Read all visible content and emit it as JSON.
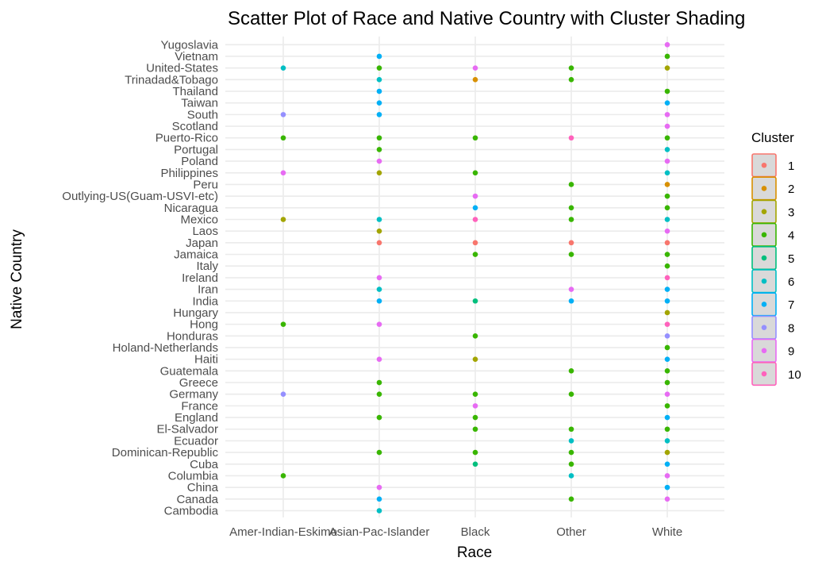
{
  "chart_data": {
    "type": "scatter",
    "title": "Scatter Plot of Race and Native Country with Cluster Shading",
    "xlabel": "Race",
    "ylabel": "Native Country",
    "grid": true,
    "legend_position": "right",
    "x_categories": [
      "Amer-Indian-Eskimo",
      "Asian-Pac-Islander",
      "Black",
      "Other",
      "White"
    ],
    "y_categories": [
      "Cambodia",
      "Canada",
      "China",
      "Columbia",
      "Cuba",
      "Dominican-Republic",
      "Ecuador",
      "El-Salvador",
      "England",
      "France",
      "Germany",
      "Greece",
      "Guatemala",
      "Haiti",
      "Holand-Netherlands",
      "Honduras",
      "Hong",
      "Hungary",
      "India",
      "Iran",
      "Ireland",
      "Italy",
      "Jamaica",
      "Japan",
      "Laos",
      "Mexico",
      "Nicaragua",
      "Outlying-US(Guam-USVI-etc)",
      "Peru",
      "Philippines",
      "Poland",
      "Portugal",
      "Puerto-Rico",
      "Scotland",
      "South",
      "Taiwan",
      "Thailand",
      "Trinadad&Tobago",
      "United-States",
      "Vietnam",
      "Yugoslavia"
    ],
    "legend": {
      "title": "Cluster",
      "entries": [
        {
          "label": "1",
          "color": "#F8766D"
        },
        {
          "label": "2",
          "color": "#D89000"
        },
        {
          "label": "3",
          "color": "#A3A500"
        },
        {
          "label": "4",
          "color": "#39B600"
        },
        {
          "label": "5",
          "color": "#00BF7D"
        },
        {
          "label": "6",
          "color": "#00BFC4"
        },
        {
          "label": "7",
          "color": "#00B0F6"
        },
        {
          "label": "8",
          "color": "#9590FF"
        },
        {
          "label": "9",
          "color": "#E76BF3"
        },
        {
          "label": "10",
          "color": "#FF62BC"
        }
      ]
    },
    "points": [
      {
        "race": "Amer-Indian-Eskimo",
        "country": "United-States",
        "cluster": "6"
      },
      {
        "race": "Amer-Indian-Eskimo",
        "country": "South",
        "cluster": "8"
      },
      {
        "race": "Amer-Indian-Eskimo",
        "country": "Puerto-Rico",
        "cluster": "4"
      },
      {
        "race": "Amer-Indian-Eskimo",
        "country": "Philippines",
        "cluster": "9"
      },
      {
        "race": "Amer-Indian-Eskimo",
        "country": "Mexico",
        "cluster": "3"
      },
      {
        "race": "Amer-Indian-Eskimo",
        "country": "Hong",
        "cluster": "4"
      },
      {
        "race": "Amer-Indian-Eskimo",
        "country": "Germany",
        "cluster": "8"
      },
      {
        "race": "Amer-Indian-Eskimo",
        "country": "Columbia",
        "cluster": "4"
      },
      {
        "race": "Asian-Pac-Islander",
        "country": "Vietnam",
        "cluster": "7"
      },
      {
        "race": "Asian-Pac-Islander",
        "country": "United-States",
        "cluster": "4"
      },
      {
        "race": "Asian-Pac-Islander",
        "country": "Trinadad&Tobago",
        "cluster": "6"
      },
      {
        "race": "Asian-Pac-Islander",
        "country": "Thailand",
        "cluster": "7"
      },
      {
        "race": "Asian-Pac-Islander",
        "country": "Taiwan",
        "cluster": "7"
      },
      {
        "race": "Asian-Pac-Islander",
        "country": "South",
        "cluster": "7"
      },
      {
        "race": "Asian-Pac-Islander",
        "country": "Puerto-Rico",
        "cluster": "4"
      },
      {
        "race": "Asian-Pac-Islander",
        "country": "Portugal",
        "cluster": "4"
      },
      {
        "race": "Asian-Pac-Islander",
        "country": "Poland",
        "cluster": "9"
      },
      {
        "race": "Asian-Pac-Islander",
        "country": "Philippines",
        "cluster": "3"
      },
      {
        "race": "Asian-Pac-Islander",
        "country": "Mexico",
        "cluster": "6"
      },
      {
        "race": "Asian-Pac-Islander",
        "country": "Laos",
        "cluster": "3"
      },
      {
        "race": "Asian-Pac-Islander",
        "country": "Japan",
        "cluster": "1"
      },
      {
        "race": "Asian-Pac-Islander",
        "country": "Ireland",
        "cluster": "9"
      },
      {
        "race": "Asian-Pac-Islander",
        "country": "Iran",
        "cluster": "6"
      },
      {
        "race": "Asian-Pac-Islander",
        "country": "India",
        "cluster": "7"
      },
      {
        "race": "Asian-Pac-Islander",
        "country": "Hong",
        "cluster": "9"
      },
      {
        "race": "Asian-Pac-Islander",
        "country": "Haiti",
        "cluster": "9"
      },
      {
        "race": "Asian-Pac-Islander",
        "country": "Greece",
        "cluster": "4"
      },
      {
        "race": "Asian-Pac-Islander",
        "country": "Germany",
        "cluster": "4"
      },
      {
        "race": "Asian-Pac-Islander",
        "country": "England",
        "cluster": "4"
      },
      {
        "race": "Asian-Pac-Islander",
        "country": "Dominican-Republic",
        "cluster": "4"
      },
      {
        "race": "Asian-Pac-Islander",
        "country": "China",
        "cluster": "9"
      },
      {
        "race": "Asian-Pac-Islander",
        "country": "Canada",
        "cluster": "7"
      },
      {
        "race": "Asian-Pac-Islander",
        "country": "Cambodia",
        "cluster": "6"
      },
      {
        "race": "Black",
        "country": "United-States",
        "cluster": "9"
      },
      {
        "race": "Black",
        "country": "Trinadad&Tobago",
        "cluster": "2"
      },
      {
        "race": "Black",
        "country": "Puerto-Rico",
        "cluster": "4"
      },
      {
        "race": "Black",
        "country": "Philippines",
        "cluster": "4"
      },
      {
        "race": "Black",
        "country": "Outlying-US(Guam-USVI-etc)",
        "cluster": "9"
      },
      {
        "race": "Black",
        "country": "Nicaragua",
        "cluster": "7"
      },
      {
        "race": "Black",
        "country": "Mexico",
        "cluster": "10"
      },
      {
        "race": "Black",
        "country": "Japan",
        "cluster": "1"
      },
      {
        "race": "Black",
        "country": "Jamaica",
        "cluster": "4"
      },
      {
        "race": "Black",
        "country": "India",
        "cluster": "5"
      },
      {
        "race": "Black",
        "country": "Honduras",
        "cluster": "4"
      },
      {
        "race": "Black",
        "country": "Haiti",
        "cluster": "3"
      },
      {
        "race": "Black",
        "country": "Germany",
        "cluster": "4"
      },
      {
        "race": "Black",
        "country": "France",
        "cluster": "9"
      },
      {
        "race": "Black",
        "country": "England",
        "cluster": "4"
      },
      {
        "race": "Black",
        "country": "El-Salvador",
        "cluster": "4"
      },
      {
        "race": "Black",
        "country": "Dominican-Republic",
        "cluster": "4"
      },
      {
        "race": "Black",
        "country": "Cuba",
        "cluster": "5"
      },
      {
        "race": "Other",
        "country": "United-States",
        "cluster": "4"
      },
      {
        "race": "Other",
        "country": "Trinadad&Tobago",
        "cluster": "4"
      },
      {
        "race": "Other",
        "country": "Puerto-Rico",
        "cluster": "10"
      },
      {
        "race": "Other",
        "country": "Peru",
        "cluster": "4"
      },
      {
        "race": "Other",
        "country": "Nicaragua",
        "cluster": "4"
      },
      {
        "race": "Other",
        "country": "Mexico",
        "cluster": "4"
      },
      {
        "race": "Other",
        "country": "Japan",
        "cluster": "1"
      },
      {
        "race": "Other",
        "country": "Jamaica",
        "cluster": "4"
      },
      {
        "race": "Other",
        "country": "Iran",
        "cluster": "9"
      },
      {
        "race": "Other",
        "country": "India",
        "cluster": "7"
      },
      {
        "race": "Other",
        "country": "Guatemala",
        "cluster": "4"
      },
      {
        "race": "Other",
        "country": "Germany",
        "cluster": "4"
      },
      {
        "race": "Other",
        "country": "El-Salvador",
        "cluster": "4"
      },
      {
        "race": "Other",
        "country": "Ecuador",
        "cluster": "6"
      },
      {
        "race": "Other",
        "country": "Dominican-Republic",
        "cluster": "4"
      },
      {
        "race": "Other",
        "country": "Cuba",
        "cluster": "4"
      },
      {
        "race": "Other",
        "country": "Columbia",
        "cluster": "6"
      },
      {
        "race": "Other",
        "country": "Canada",
        "cluster": "4"
      },
      {
        "race": "White",
        "country": "Yugoslavia",
        "cluster": "9"
      },
      {
        "race": "White",
        "country": "Vietnam",
        "cluster": "4"
      },
      {
        "race": "White",
        "country": "United-States",
        "cluster": "3"
      },
      {
        "race": "White",
        "country": "Thailand",
        "cluster": "4"
      },
      {
        "race": "White",
        "country": "Taiwan",
        "cluster": "7"
      },
      {
        "race": "White",
        "country": "South",
        "cluster": "9"
      },
      {
        "race": "White",
        "country": "Scotland",
        "cluster": "9"
      },
      {
        "race": "White",
        "country": "Puerto-Rico",
        "cluster": "4"
      },
      {
        "race": "White",
        "country": "Portugal",
        "cluster": "6"
      },
      {
        "race": "White",
        "country": "Poland",
        "cluster": "9"
      },
      {
        "race": "White",
        "country": "Philippines",
        "cluster": "6"
      },
      {
        "race": "White",
        "country": "Peru",
        "cluster": "2"
      },
      {
        "race": "White",
        "country": "Outlying-US(Guam-USVI-etc)",
        "cluster": "4"
      },
      {
        "race": "White",
        "country": "Nicaragua",
        "cluster": "4"
      },
      {
        "race": "White",
        "country": "Mexico",
        "cluster": "6"
      },
      {
        "race": "White",
        "country": "Laos",
        "cluster": "9"
      },
      {
        "race": "White",
        "country": "Japan",
        "cluster": "1"
      },
      {
        "race": "White",
        "country": "Jamaica",
        "cluster": "4"
      },
      {
        "race": "White",
        "country": "Italy",
        "cluster": "4"
      },
      {
        "race": "White",
        "country": "Ireland",
        "cluster": "10"
      },
      {
        "race": "White",
        "country": "Iran",
        "cluster": "7"
      },
      {
        "race": "White",
        "country": "India",
        "cluster": "7"
      },
      {
        "race": "White",
        "country": "Hungary",
        "cluster": "3"
      },
      {
        "race": "White",
        "country": "Hong",
        "cluster": "10"
      },
      {
        "race": "White",
        "country": "Honduras",
        "cluster": "8"
      },
      {
        "race": "White",
        "country": "Holand-Netherlands",
        "cluster": "4"
      },
      {
        "race": "White",
        "country": "Haiti",
        "cluster": "7"
      },
      {
        "race": "White",
        "country": "Guatemala",
        "cluster": "4"
      },
      {
        "race": "White",
        "country": "Greece",
        "cluster": "4"
      },
      {
        "race": "White",
        "country": "Germany",
        "cluster": "9"
      },
      {
        "race": "White",
        "country": "France",
        "cluster": "4"
      },
      {
        "race": "White",
        "country": "England",
        "cluster": "7"
      },
      {
        "race": "White",
        "country": "El-Salvador",
        "cluster": "4"
      },
      {
        "race": "White",
        "country": "Ecuador",
        "cluster": "6"
      },
      {
        "race": "White",
        "country": "Dominican-Republic",
        "cluster": "3"
      },
      {
        "race": "White",
        "country": "Cuba",
        "cluster": "7"
      },
      {
        "race": "White",
        "country": "Columbia",
        "cluster": "9"
      },
      {
        "race": "White",
        "country": "China",
        "cluster": "7"
      },
      {
        "race": "White",
        "country": "Canada",
        "cluster": "9"
      }
    ]
  }
}
